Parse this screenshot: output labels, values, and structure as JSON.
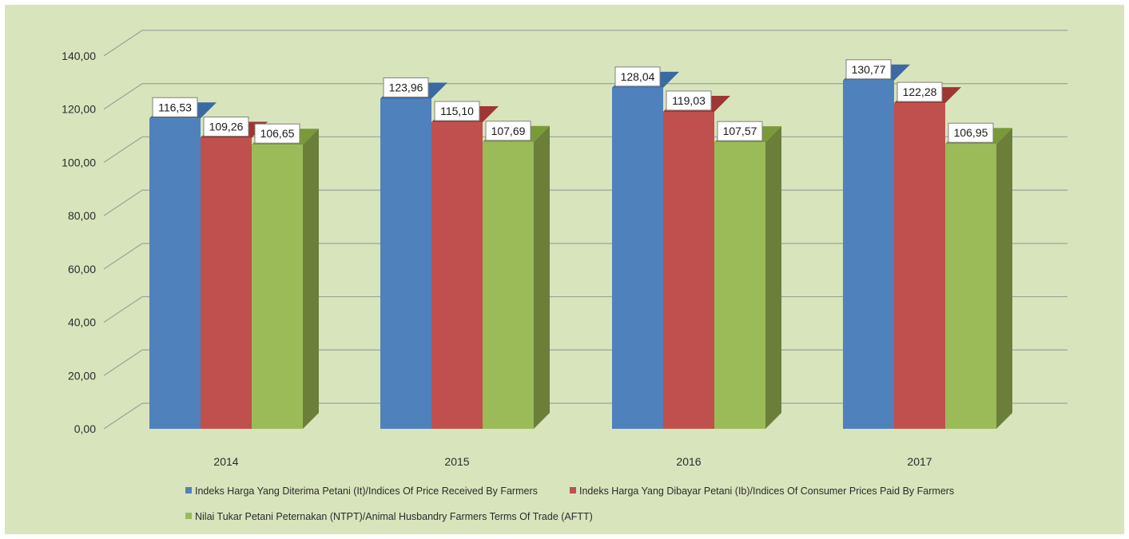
{
  "chart_data": {
    "type": "bar",
    "categories": [
      "2014",
      "2015",
      "2016",
      "2017"
    ],
    "series": [
      {
        "name": "Indeks Harga Yang Diterima Petani (It)/Indices Of Price Received By  Farmers",
        "values": [
          116.53,
          123.96,
          128.04,
          130.77
        ],
        "labels": [
          "116,53",
          "123,96",
          "128,04",
          "130,77"
        ],
        "color": "#4f81bd",
        "top_color": "#3b6aa3",
        "side_color": "#385d8a"
      },
      {
        "name": "Indeks Harga Yang Dibayar Petani (Ib)/Indices Of Consumer Prices Paid By Farmers",
        "values": [
          109.26,
          115.1,
          119.03,
          122.28
        ],
        "labels": [
          "109,26",
          "115,10",
          "119,03",
          "122,28"
        ],
        "color": "#c0504d",
        "top_color": "#9e3633",
        "side_color": "#8c3836"
      },
      {
        "name": "Nilai Tukar Petani Peternakan (NTPT)/Animal Husbandry Farmers Terms Of Trade (AFTT)",
        "values": [
          106.65,
          107.69,
          107.57,
          106.95
        ],
        "labels": [
          "106,65",
          "107,69",
          "107,57",
          "106,95"
        ],
        "color": "#9bbb59",
        "top_color": "#7a9a3a",
        "side_color": "#6b7f3a"
      }
    ],
    "y_ticks": [
      "0,00",
      "20,00",
      "40,00",
      "60,00",
      "80,00",
      "100,00",
      "120,00",
      "140,00"
    ],
    "ylim": [
      0,
      140
    ],
    "grid": true,
    "legend_position": "bottom",
    "background": "#d8e4bc"
  }
}
